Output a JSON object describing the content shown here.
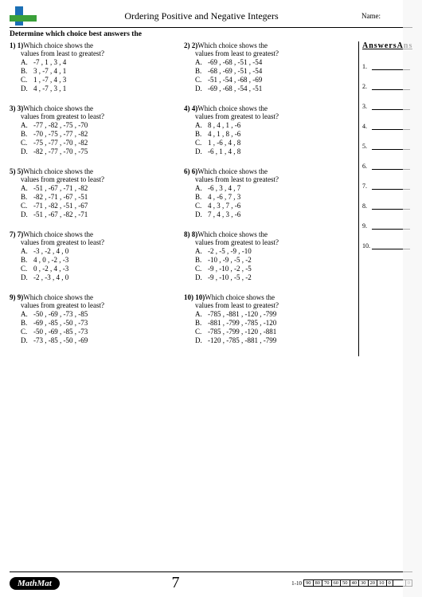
{
  "header": {
    "title": "Ordering Positive and Negative Integers",
    "name_label": "Name:"
  },
  "instruction": "Determine which choice best answers the",
  "answers_heading": "AnswersAns",
  "page_number": "7",
  "mathmat": "MathMat",
  "score_label": "1-10",
  "score_cells": [
    "90",
    "80",
    "70",
    "60",
    "50",
    "40",
    "30",
    "20",
    "10"
  ],
  "questions": [
    {
      "n1": "1) 1)",
      "p1": "Which choice shows the",
      "p2": "values from least to greatest?",
      "c": [
        "-7 , 1 , 3 , 4",
        "3 , -7 , 4 , 1",
        "1 , -7 , 4 , 3",
        "4 , -7 , 3 , 1"
      ]
    },
    {
      "n1": "2) 2)",
      "p1": "Which choice shows the",
      "p2": "values from least to greatest?",
      "c": [
        "-69 , -68 , -51 , -54",
        "-68 , -69 , -51 , -54",
        "-51 , -54 , -68 , -69",
        "-69 , -68 , -54 , -51"
      ]
    },
    {
      "n1": "3) 3)",
      "p1": "Which choice shows the",
      "p2": "values from greatest to least?",
      "c": [
        "-77 , -82 , -75 , -70",
        "-70 , -75 , -77 , -82",
        "-75 , -77 , -70 , -82",
        "-82 , -77 , -70 , -75"
      ]
    },
    {
      "n1": "4) 4)",
      "p1": "Which choice shows the",
      "p2": "values from greatest to least?",
      "c": [
        "8 , 4 , 1 , -6",
        "4 , 1 , 8 , -6",
        "1 , -6 , 4 , 8",
        "-6 , 1 , 4 , 8"
      ]
    },
    {
      "n1": "5) 5)",
      "p1": "Which choice shows the",
      "p2": "values from greatest to least?",
      "c": [
        "-51 , -67 , -71 , -82",
        "-82 , -71 , -67 , -51",
        "-71 , -82 , -51 , -67",
        "-51 , -67 , -82 , -71"
      ]
    },
    {
      "n1": "6) 6)",
      "p1": "Which choice shows the",
      "p2": "values from least to greatest?",
      "c": [
        "-6 , 3 , 4 , 7",
        "4 , -6 , 7 , 3",
        "4 , 3 , 7 , -6",
        "7 , 4 , 3 , -6"
      ]
    },
    {
      "n1": "7) 7)",
      "p1": "Which choice shows the",
      "p2": "values from greatest to least?",
      "c": [
        "-3 , -2 , 4 , 0",
        "4 , 0 , -2 , -3",
        "0 , -2 , 4 , -3",
        "-2 , -3 , 4 , 0"
      ]
    },
    {
      "n1": "8) 8)",
      "p1": "Which choice shows the",
      "p2": "values from greatest to least?",
      "c": [
        "-2 , -5 , -9 , -10",
        "-10 , -9 , -5 , -2",
        "-9 , -10 , -2 , -5",
        "-9 , -10 , -5 , -2"
      ]
    },
    {
      "n1": "9) 9)",
      "p1": "Which choice shows the",
      "p2": "values from greatest to least?",
      "c": [
        "-50 , -69 , -73 , -85",
        "-69 , -85 , -50 , -73",
        "-50 , -69 , -85 , -73",
        "-73 , -85 , -50 , -69"
      ]
    },
    {
      "n1": "10) 10)",
      "p1": "Which choice shows the",
      "p2": "values from least to greatest?",
      "c": [
        "-785 , -881 , -120 , -799",
        "-881 , -799 , -785 , -120",
        "-785 , -799 , -120 , -881",
        "-120 , -785 , -881 , -799"
      ]
    }
  ],
  "choice_letters": [
    "A.",
    "B.",
    "C.",
    "D."
  ],
  "answer_numbers": [
    "1.",
    "2.",
    "3.",
    "4.",
    "5.",
    "6.",
    "7.",
    "8.",
    "9.",
    "10."
  ]
}
